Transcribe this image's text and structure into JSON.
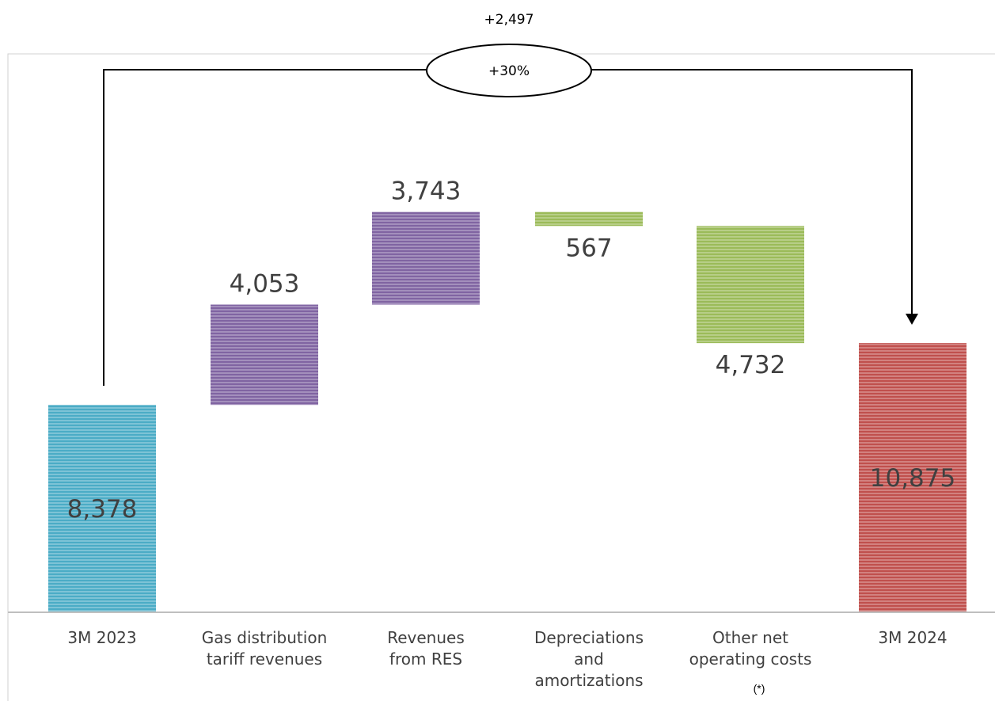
{
  "chart_data": {
    "type": "waterfall",
    "categories": [
      [
        "3M 2023"
      ],
      [
        "Gas distribution",
        "tariff revenues"
      ],
      [
        "Revenues",
        "from RES"
      ],
      [
        "Depreciations",
        "and",
        "amortizations"
      ],
      [
        "Other net",
        "operating costs"
      ],
      [
        "3M 2024"
      ]
    ],
    "values": [
      8378,
      4053,
      3743,
      -567,
      -4732,
      10875
    ],
    "labels": [
      "8,378",
      "4,053",
      "3,743",
      "567",
      "4,732",
      "10,875"
    ],
    "kinds": [
      "total",
      "increase",
      "increase",
      "decrease",
      "decrease",
      "total"
    ],
    "colors": [
      "#4bacc6",
      "#8064a2",
      "#8064a2",
      "#9bbb59",
      "#9bbb59",
      "#c0504d"
    ],
    "footnote_mark": "(*)",
    "change": {
      "absolute": "+2,497",
      "percent": "+30%"
    }
  }
}
